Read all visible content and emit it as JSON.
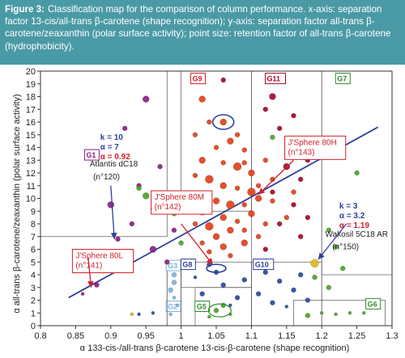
{
  "caption": {
    "label": "Figure 3:",
    "text": "Classification map for the comparison of column performance. x-axis: separation factor 13-cis/all-trans β-carotene (shape recognition); y-axis: separation factor all-trans β-carotene/zeaxanthin (polar surface activity); point size: retention factor of all-trans β-carotene (hydrophobicity)."
  },
  "colors": {
    "caption_bg": "#4a9aa5",
    "trend_line": "#2f3f9c",
    "callout_red": "#d0202a",
    "callout_purple": "#8e1f86",
    "callout_green": "#2f8a2f",
    "callout_blue": "#2f3f9c",
    "group_red": "#e2421a",
    "group_darkred": "#a6092a",
    "group_green": "#4aa52a",
    "group_blue": "#2a4aa2",
    "group_lightblue": "#7ab4dc",
    "group_yellow": "#e0b81a"
  },
  "chart_data": {
    "type": "scatter",
    "title": "",
    "xlabel": "α 133-cis-/all-trans β-carotene 13-cis-β-carotene (shape recognition)",
    "ylabel": "α all-trans β-carotene/zeaxanthin (polar surface activity)",
    "xlim": [
      0.8,
      1.3
    ],
    "ylim": [
      0,
      20
    ],
    "xticks": [
      "0.8",
      "0.85",
      "0.9",
      "0.95",
      "1",
      "1.05",
      "1.1",
      "1.15",
      "1.2",
      "1.25",
      "1.3"
    ],
    "yticks": [
      "0",
      "1",
      "2",
      "3",
      "4",
      "5",
      "6",
      "7",
      "8",
      "9",
      "10",
      "11",
      "12",
      "13",
      "14",
      "15",
      "16",
      "17",
      "18",
      "19",
      "20"
    ],
    "grid": false,
    "trend_line": {
      "x": [
        0.84,
        1.28
      ],
      "y": [
        2.2,
        15.6
      ]
    },
    "groups": [
      {
        "label": "G1",
        "x": [
          0.8,
          0.98
        ],
        "y": [
          7,
          20
        ],
        "color": "#8e1f86",
        "label_x": 0.865,
        "label_y": 13.2
      },
      {
        "label": "G2",
        "x": [
          0.98,
          1.0
        ],
        "y": [
          0,
          5
        ],
        "color": "#7ab4dc",
        "label_x": 0.981,
        "label_y": 1.3
      },
      {
        "label": "G3",
        "x": [
          0.98,
          1.0
        ],
        "y": [
          0,
          5
        ],
        "color": "#7ab4dc",
        "label_x": 0.981,
        "label_y": 4.5
      },
      {
        "label": "G5",
        "x": [
          1.02,
          1.1
        ],
        "y": [
          0,
          3
        ],
        "color": "#2f8a2f",
        "label_x": 1.022,
        "label_y": 1.3
      },
      {
        "label": "G6",
        "x": [
          1.16,
          1.29
        ],
        "y": [
          0,
          2
        ],
        "color": "#2f8a2f",
        "label_x": 1.265,
        "label_y": 1.5
      },
      {
        "label": "G7",
        "x": [
          1.2,
          1.3
        ],
        "y": [
          4,
          20
        ],
        "color": "#2f8a2f",
        "label_x": 1.222,
        "label_y": 19.2
      },
      {
        "label": "G8",
        "x": [
          1.0,
          1.1
        ],
        "y": [
          3,
          5
        ],
        "color": "#2f3f9c",
        "label_x": 1.002,
        "label_y": 4.6
      },
      {
        "label": "G9",
        "x": [
          1.0,
          1.1
        ],
        "y": [
          9,
          20
        ],
        "color": "#d0202a",
        "label_x": 1.016,
        "label_y": 19.2
      },
      {
        "label": "G10",
        "x": [
          1.1,
          1.2
        ],
        "y": [
          0,
          5
        ],
        "color": "#2f3f9c",
        "label_x": 1.105,
        "label_y": 4.6
      },
      {
        "label": "G11",
        "x": [
          1.1,
          1.2
        ],
        "y": [
          0,
          20
        ],
        "color": "#a6092a",
        "label_x": 1.122,
        "label_y": 19.2
      }
    ],
    "series": [
      {
        "color": "#e2421a",
        "points": [
          {
            "x": 1.03,
            "y": 17.8,
            "r": 4
          },
          {
            "x": 1.04,
            "y": 16.0,
            "r": 3
          },
          {
            "x": 1.06,
            "y": 16.0,
            "r": 4
          },
          {
            "x": 1.08,
            "y": 15.0,
            "r": 3
          },
          {
            "x": 1.02,
            "y": 15.0,
            "r": 3
          },
          {
            "x": 1.05,
            "y": 14.0,
            "r": 3
          },
          {
            "x": 1.07,
            "y": 14.5,
            "r": 4
          },
          {
            "x": 1.09,
            "y": 13.8,
            "r": 3
          },
          {
            "x": 1.03,
            "y": 13.0,
            "r": 4
          },
          {
            "x": 1.06,
            "y": 12.8,
            "r": 3
          },
          {
            "x": 1.08,
            "y": 12.5,
            "r": 5
          },
          {
            "x": 1.1,
            "y": 12.0,
            "r": 4
          },
          {
            "x": 1.12,
            "y": 13.0,
            "r": 3
          },
          {
            "x": 1.02,
            "y": 11.8,
            "r": 3
          },
          {
            "x": 1.04,
            "y": 11.5,
            "r": 5
          },
          {
            "x": 1.06,
            "y": 11.0,
            "r": 4
          },
          {
            "x": 1.08,
            "y": 10.8,
            "r": 3
          },
          {
            "x": 1.1,
            "y": 10.5,
            "r": 5
          },
          {
            "x": 1.13,
            "y": 11.5,
            "r": 3
          },
          {
            "x": 1.02,
            "y": 10.2,
            "r": 4
          },
          {
            "x": 1.05,
            "y": 9.8,
            "r": 4
          },
          {
            "x": 1.07,
            "y": 9.5,
            "r": 5
          },
          {
            "x": 1.09,
            "y": 9.5,
            "r": 3
          },
          {
            "x": 1.11,
            "y": 10.0,
            "r": 4
          },
          {
            "x": 1.03,
            "y": 9.0,
            "r": 5
          },
          {
            "x": 1.06,
            "y": 8.5,
            "r": 4
          },
          {
            "x": 1.08,
            "y": 8.2,
            "r": 3
          },
          {
            "x": 1.1,
            "y": 8.8,
            "r": 4
          },
          {
            "x": 1.02,
            "y": 8.0,
            "r": 3
          },
          {
            "x": 1.04,
            "y": 7.8,
            "r": 5
          },
          {
            "x": 1.07,
            "y": 7.5,
            "r": 4
          },
          {
            "x": 1.09,
            "y": 7.5,
            "r": 3
          },
          {
            "x": 1.12,
            "y": 8.0,
            "r": 3
          },
          {
            "x": 1.05,
            "y": 7.0,
            "r": 4
          },
          {
            "x": 1.03,
            "y": 6.5,
            "r": 3
          },
          {
            "x": 1.06,
            "y": 6.2,
            "r": 4
          },
          {
            "x": 1.09,
            "y": 6.5,
            "r": 4
          },
          {
            "x": 1.11,
            "y": 7.0,
            "r": 3
          },
          {
            "x": 1.04,
            "y": 5.8,
            "r": 3
          },
          {
            "x": 1.07,
            "y": 5.5,
            "r": 3
          },
          {
            "x": 1.09,
            "y": 12.8,
            "r": 3
          },
          {
            "x": 1.11,
            "y": 11.0,
            "r": 3
          },
          {
            "x": 1.13,
            "y": 9.8,
            "r": 3
          },
          {
            "x": 1.16,
            "y": 10.5,
            "r": 3
          },
          {
            "x": 1.15,
            "y": 8.5,
            "r": 3
          }
        ]
      },
      {
        "color": "#a6092a",
        "points": [
          {
            "x": 1.13,
            "y": 18.0,
            "r": 4
          },
          {
            "x": 1.16,
            "y": 16.5,
            "r": 3
          },
          {
            "x": 1.14,
            "y": 15.5,
            "r": 3
          },
          {
            "x": 1.17,
            "y": 14.5,
            "r": 4
          },
          {
            "x": 1.12,
            "y": 17.0,
            "r": 3
          },
          {
            "x": 1.18,
            "y": 13.0,
            "r": 3
          },
          {
            "x": 1.15,
            "y": 12.5,
            "r": 4
          },
          {
            "x": 1.17,
            "y": 11.5,
            "r": 3
          },
          {
            "x": 1.13,
            "y": 10.5,
            "r": 3
          },
          {
            "x": 1.16,
            "y": 9.5,
            "r": 3
          },
          {
            "x": 1.18,
            "y": 8.5,
            "r": 3
          },
          {
            "x": 1.06,
            "y": 19.3,
            "r": 3
          },
          {
            "x": 1.14,
            "y": 8.0,
            "r": 3
          },
          {
            "x": 1.17,
            "y": 7.0,
            "r": 3
          },
          {
            "x": 1.12,
            "y": 6.0,
            "r": 3
          }
        ]
      },
      {
        "color": "#8e1f86",
        "points": [
          {
            "x": 0.95,
            "y": 17.8,
            "r": 4
          },
          {
            "x": 0.92,
            "y": 15.5,
            "r": 3
          },
          {
            "x": 0.97,
            "y": 12.5,
            "r": 3
          },
          {
            "x": 0.94,
            "y": 11.0,
            "r": 3
          },
          {
            "x": 0.9,
            "y": 9.5,
            "r": 4
          },
          {
            "x": 0.96,
            "y": 9.2,
            "r": 3
          },
          {
            "x": 0.93,
            "y": 8.0,
            "r": 3
          },
          {
            "x": 0.91,
            "y": 6.8,
            "r": 3
          },
          {
            "x": 0.88,
            "y": 3.2,
            "r": 3
          },
          {
            "x": 0.86,
            "y": 2.5,
            "r": 2
          },
          {
            "x": 0.9,
            "y": 4.5,
            "r": 3
          },
          {
            "x": 0.96,
            "y": 6.0,
            "r": 4
          },
          {
            "x": 0.99,
            "y": 7.5,
            "r": 3
          },
          {
            "x": 0.98,
            "y": 5.0,
            "r": 3
          }
        ]
      },
      {
        "color": "#4aa52a",
        "points": [
          {
            "x": 0.94,
            "y": 10.8,
            "r": 3
          },
          {
            "x": 0.95,
            "y": 10.2,
            "r": 4
          },
          {
            "x": 0.99,
            "y": 8.8,
            "r": 3
          },
          {
            "x": 1.0,
            "y": 6.5,
            "r": 3
          },
          {
            "x": 1.13,
            "y": 14.8,
            "r": 3
          },
          {
            "x": 1.21,
            "y": 7.5,
            "r": 3
          },
          {
            "x": 1.22,
            "y": 6.2,
            "r": 3
          },
          {
            "x": 1.25,
            "y": 12.0,
            "r": 3
          },
          {
            "x": 1.23,
            "y": 4.5,
            "r": 3
          },
          {
            "x": 1.19,
            "y": 3.8,
            "r": 3
          },
          {
            "x": 1.21,
            "y": 3.0,
            "r": 3
          },
          {
            "x": 1.18,
            "y": 0.8,
            "r": 3
          },
          {
            "x": 1.2,
            "y": 1.0,
            "r": 2
          },
          {
            "x": 1.22,
            "y": 0.9,
            "r": 2
          },
          {
            "x": 1.24,
            "y": 1.0,
            "r": 2
          },
          {
            "x": 1.26,
            "y": 1.0,
            "r": 2
          },
          {
            "x": 1.05,
            "y": 1.2,
            "r": 3
          },
          {
            "x": 1.06,
            "y": 1.6,
            "r": 3
          },
          {
            "x": 1.07,
            "y": 0.9,
            "r": 2
          },
          {
            "x": 1.04,
            "y": 0.7,
            "r": 2
          }
        ]
      },
      {
        "color": "#2a4aa2",
        "points": [
          {
            "x": 1.04,
            "y": 4.8,
            "r": 3
          },
          {
            "x": 1.05,
            "y": 4.2,
            "r": 3
          },
          {
            "x": 1.06,
            "y": 3.2,
            "r": 3
          },
          {
            "x": 1.03,
            "y": 2.5,
            "r": 3
          },
          {
            "x": 1.08,
            "y": 2.2,
            "r": 3
          },
          {
            "x": 1.02,
            "y": 3.8,
            "r": 2
          },
          {
            "x": 1.09,
            "y": 3.6,
            "r": 3
          },
          {
            "x": 1.12,
            "y": 4.2,
            "r": 3
          },
          {
            "x": 1.14,
            "y": 3.5,
            "r": 3
          },
          {
            "x": 1.16,
            "y": 2.8,
            "r": 3
          },
          {
            "x": 1.11,
            "y": 2.5,
            "r": 3
          },
          {
            "x": 1.13,
            "y": 1.8,
            "r": 3
          },
          {
            "x": 1.17,
            "y": 4.0,
            "r": 3
          },
          {
            "x": 1.15,
            "y": 1.5,
            "r": 2
          },
          {
            "x": 1.18,
            "y": 2.0,
            "r": 3
          },
          {
            "x": 1.07,
            "y": 1.6,
            "r": 2
          },
          {
            "x": 0.96,
            "y": 1.0,
            "r": 2
          },
          {
            "x": 0.94,
            "y": 0.9,
            "r": 2
          }
        ]
      },
      {
        "color": "#7ab4dc",
        "points": [
          {
            "x": 0.99,
            "y": 4.0,
            "r": 3
          },
          {
            "x": 0.99,
            "y": 3.4,
            "r": 3
          },
          {
            "x": 0.985,
            "y": 2.8,
            "r": 3
          },
          {
            "x": 0.99,
            "y": 2.2,
            "r": 2
          },
          {
            "x": 0.995,
            "y": 1.6,
            "r": 2
          },
          {
            "x": 0.985,
            "y": 0.9,
            "r": 2
          }
        ]
      },
      {
        "color": "#e0b81a",
        "points": [
          {
            "x": 1.19,
            "y": 4.9,
            "r": 5
          },
          {
            "x": 0.93,
            "y": 0.9,
            "r": 2
          }
        ]
      }
    ],
    "annotations": [
      {
        "kind": "stats",
        "lines": [
          "k = 10",
          "α = 7",
          "α = 0.92"
        ],
        "color": "#2f3f9c",
        "x": 0.885,
        "y": 14.6
      },
      {
        "kind": "label",
        "text": "Atlantis dC18",
        "color": "#222222",
        "x": 0.87,
        "y": 12.5
      },
      {
        "kind": "label",
        "text": "(n°120)",
        "color": "#222222",
        "x": 0.875,
        "y": 11.5
      },
      {
        "kind": "box",
        "lines": [
          "J'Sphere 80H",
          "(n°143)"
        ],
        "color": "#d0202a",
        "x": 1.152,
        "y": 14.2
      },
      {
        "kind": "box",
        "lines": [
          "J'Sphere 80M",
          "(n°142)"
        ],
        "color": "#d0202a",
        "x": 0.962,
        "y": 9.9
      },
      {
        "kind": "box",
        "lines": [
          "J'Sphere 80L",
          "(n°141)"
        ],
        "color": "#d0202a",
        "x": 0.85,
        "y": 5.3
      },
      {
        "kind": "stats",
        "lines": [
          "k = 3",
          "α = 3.2",
          "α = 1.19"
        ],
        "color": "#2f3f9c",
        "x": 1.225,
        "y": 9.2
      },
      {
        "kind": "label",
        "text": "Wakosil 5C18 AR",
        "color": "#222222",
        "x": 1.205,
        "y": 7.0
      },
      {
        "kind": "label",
        "text": "(n°150)",
        "color": "#222222",
        "x": 1.215,
        "y": 6.0
      }
    ]
  }
}
